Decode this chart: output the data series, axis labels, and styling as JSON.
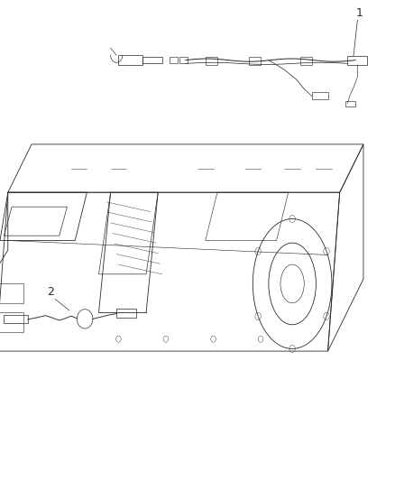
{
  "background_color": "#ffffff",
  "line_color": "#2a2a2a",
  "label_color": "#2a2a2a",
  "label_fontsize": 9,
  "fig_width": 4.38,
  "fig_height": 5.33,
  "dpi": 100
}
